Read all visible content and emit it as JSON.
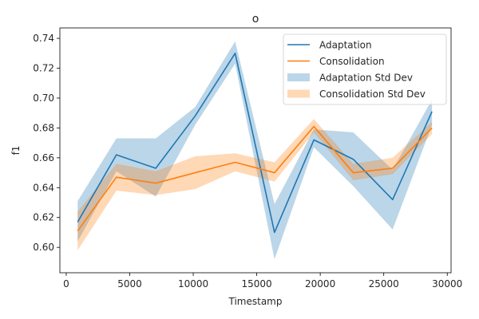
{
  "chart_data": {
    "type": "line",
    "title": "o",
    "xlabel": "Timestamp",
    "ylabel": "f1",
    "xlim": [
      -500,
      30300
    ],
    "ylim": [
      0.583,
      0.747
    ],
    "xticks": [
      0,
      5000,
      10000,
      15000,
      20000,
      25000,
      30000
    ],
    "xtick_labels": [
      "0",
      "5000",
      "10000",
      "15000",
      "20000",
      "25000",
      "30000"
    ],
    "yticks": [
      0.6,
      0.62,
      0.64,
      0.66,
      0.68,
      0.7,
      0.72,
      0.74
    ],
    "ytick_labels": [
      "0.60",
      "0.62",
      "0.64",
      "0.66",
      "0.68",
      "0.70",
      "0.72",
      "0.74"
    ],
    "grid": false,
    "legend_position": "top-right",
    "x": [
      900,
      3950,
      7050,
      10150,
      13300,
      16400,
      19500,
      22600,
      25700,
      28800
    ],
    "series": [
      {
        "name": "Adaptation",
        "color": "#1f77b4",
        "values": [
          0.617,
          0.662,
          0.653,
          0.688,
          0.73,
          0.61,
          0.672,
          0.659,
          0.632,
          0.691
        ],
        "band_name": "Adaptation Std Dev",
        "band_color": "#1f77b4",
        "band_lower": [
          0.604,
          0.651,
          0.634,
          0.682,
          0.723,
          0.592,
          0.667,
          0.641,
          0.612,
          0.682
        ],
        "band_upper": [
          0.631,
          0.673,
          0.673,
          0.694,
          0.738,
          0.629,
          0.679,
          0.677,
          0.652,
          0.699
        ]
      },
      {
        "name": "Consolidation",
        "color": "#ff7f0e",
        "values": [
          0.611,
          0.647,
          0.643,
          0.65,
          0.657,
          0.65,
          0.681,
          0.65,
          0.653,
          0.68
        ],
        "band_name": "Consolidation Std Dev",
        "band_color": "#ff7f0e",
        "band_lower": [
          0.598,
          0.638,
          0.635,
          0.639,
          0.651,
          0.644,
          0.677,
          0.645,
          0.649,
          0.676
        ],
        "band_upper": [
          0.624,
          0.656,
          0.651,
          0.661,
          0.663,
          0.657,
          0.686,
          0.656,
          0.66,
          0.684
        ]
      }
    ]
  }
}
